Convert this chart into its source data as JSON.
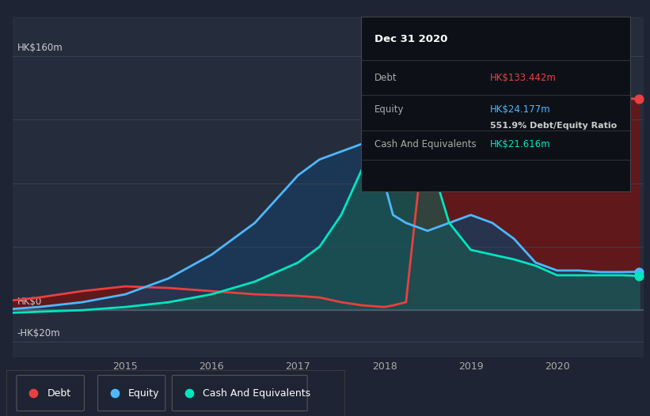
{
  "bg_color": "#1e2433",
  "plot_bg_color": "#252d3d",
  "grid_color": "#3a4255",
  "title_box": {
    "date": "Dec 31 2020",
    "debt_label": "Debt",
    "debt_value": "HK$133.442m",
    "debt_color": "#e84040",
    "equity_label": "Equity",
    "equity_value": "HK$24.177m",
    "equity_color": "#4db8ff",
    "ratio": "551.9%",
    "ratio_label": "Debt/Equity Ratio",
    "cash_label": "Cash And Equivalents",
    "cash_value": "HK$21.616m",
    "cash_color": "#00e5c0",
    "box_bg": "#0d1117"
  },
  "yticks_labels": [
    "HK$160m",
    "HK$0",
    "-HK$20m"
  ],
  "yticks_values": [
    160,
    0,
    -20
  ],
  "xticks_labels": [
    "2015",
    "2016",
    "2017",
    "2018",
    "2019",
    "2020"
  ],
  "xticks_values": [
    2015,
    2016,
    2017,
    2018,
    2019,
    2020
  ],
  "xlim": [
    2013.7,
    2021.0
  ],
  "ylim": [
    -30,
    185
  ],
  "debt_color": "#e84040",
  "equity_color": "#4db8ff",
  "cash_color": "#00e5c0",
  "debt_fill_color": "#6b1515",
  "equity_fill_color": "#1a3a5c",
  "cash_fill_color": "#1a5a50",
  "legend_items": [
    {
      "label": "Debt",
      "color": "#e84040"
    },
    {
      "label": "Equity",
      "color": "#4db8ff"
    },
    {
      "label": "Cash And Equivalents",
      "color": "#00e5c0"
    }
  ],
  "time": [
    2013.5,
    2014.0,
    2014.5,
    2015.0,
    2015.5,
    2016.0,
    2016.5,
    2017.0,
    2017.25,
    2017.5,
    2017.75,
    2018.0,
    2018.1,
    2018.25,
    2018.5,
    2018.75,
    2019.0,
    2019.25,
    2019.5,
    2019.75,
    2020.0,
    2020.25,
    2020.5,
    2020.75,
    2020.95
  ],
  "debt": [
    5,
    8,
    12,
    15,
    14,
    12,
    10,
    9,
    8,
    5,
    3,
    2,
    3,
    5,
    130,
    133,
    133,
    133,
    133,
    133,
    133,
    133,
    133,
    133,
    133.4
  ],
  "equity": [
    0,
    2,
    5,
    10,
    20,
    35,
    55,
    85,
    95,
    100,
    105,
    80,
    60,
    55,
    50,
    55,
    60,
    55,
    45,
    30,
    25,
    25,
    24,
    24,
    24.2
  ],
  "cash": [
    -2,
    -1,
    0,
    2,
    5,
    10,
    18,
    30,
    40,
    60,
    90,
    120,
    130,
    125,
    100,
    55,
    38,
    35,
    32,
    28,
    22,
    22,
    22,
    22,
    21.6
  ]
}
